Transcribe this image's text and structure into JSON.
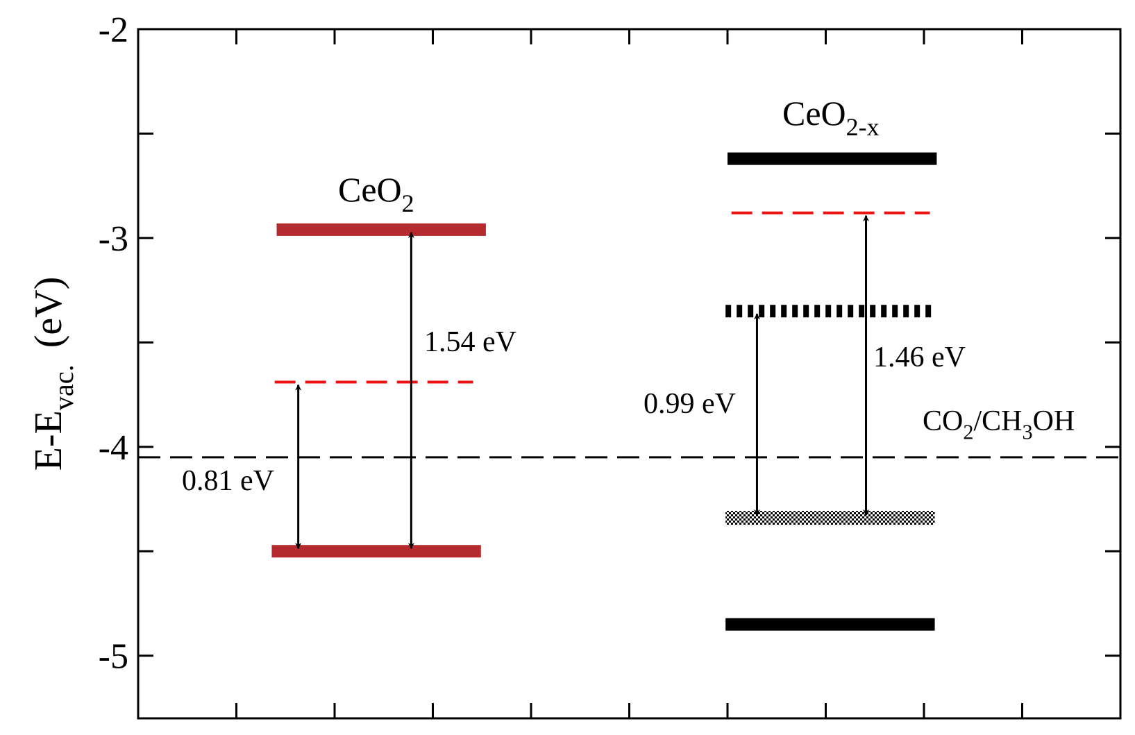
{
  "chart_data": {
    "type": "energy-levels",
    "ylabel": [
      "E-E",
      "vac.",
      "(eV)"
    ],
    "ylim": [
      -5.3,
      -2
    ],
    "yticks": [
      -5,
      -4,
      -3,
      -2
    ],
    "yminor": [
      -4.5,
      -3.5,
      -2.5
    ],
    "xlim": [
      0,
      10
    ],
    "xticks": [
      0,
      1,
      2,
      3,
      4,
      5,
      6,
      7,
      8,
      9,
      10
    ],
    "levels": [
      {
        "energy": -2.96,
        "x": [
          1.41,
          3.54
        ],
        "color": "#b52a2e",
        "style": "solid"
      },
      {
        "energy": -3.69,
        "x": [
          1.39,
          3.41
        ],
        "color": "#ee1111",
        "style": "dashed"
      },
      {
        "energy": -4.5,
        "x": [
          1.36,
          3.49
        ],
        "color": "#b52a2e",
        "style": "solid"
      },
      {
        "energy": -2.62,
        "x": [
          6.0,
          8.13
        ],
        "color": "#000000",
        "style": "solid"
      },
      {
        "energy": -2.88,
        "x": [
          6.04,
          8.06
        ],
        "color": "#ee1111",
        "style": "dashed"
      },
      {
        "energy": -3.35,
        "x": [
          5.98,
          8.11
        ],
        "color": "#000000",
        "style": "dotted"
      },
      {
        "energy": -4.34,
        "x": [
          5.98,
          8.11
        ],
        "color": "#000000",
        "style": "checkered"
      },
      {
        "energy": -4.85,
        "x": [
          5.98,
          8.11
        ],
        "color": "#000000",
        "style": "solid"
      }
    ],
    "reference": {
      "energy": -4.05,
      "label": [
        "CO",
        "2",
        "/CH",
        "3",
        "OH"
      ]
    },
    "arrows": [
      {
        "x": 1.63,
        "from": -3.69,
        "to": -4.5,
        "label": "0.81 eV"
      },
      {
        "x": 2.78,
        "from": -2.96,
        "to": -4.5,
        "label": "1.54 eV"
      },
      {
        "x": 6.3,
        "from": -3.35,
        "to": -4.34,
        "label": "0.99 eV"
      },
      {
        "x": 7.41,
        "from": -2.88,
        "to": -4.34,
        "label": "1.46 eV"
      }
    ],
    "annotations": [
      [
        "CeO",
        "2"
      ],
      [
        "CeO",
        "2-x"
      ]
    ]
  }
}
